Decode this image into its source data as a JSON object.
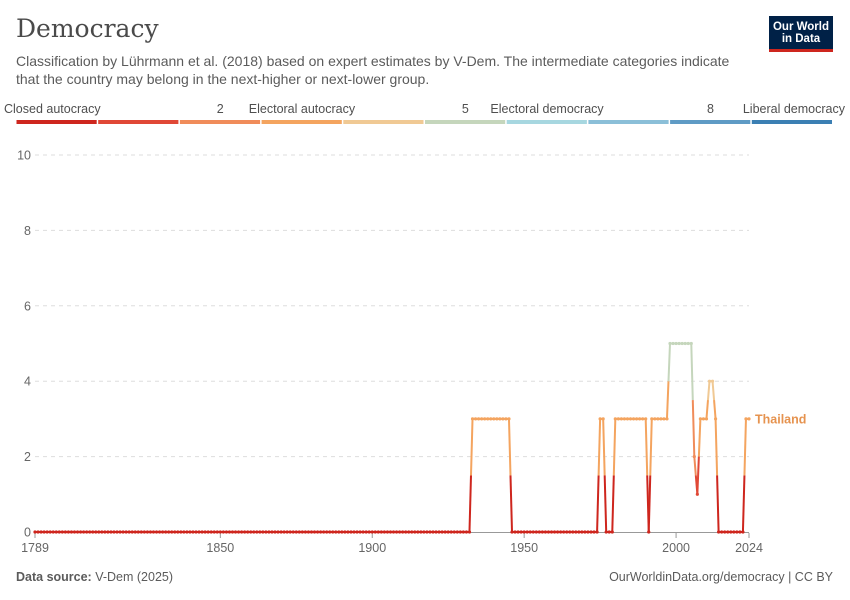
{
  "header": {
    "title": "Democracy",
    "subtitle": "Classification by Lührmann et al. (2018) based on expert estimates by V-Dem. The intermediate categories indicate that the country may belong in the next-higher or next-lower group.",
    "logo_line1": "Our World",
    "logo_line2": "in Data"
  },
  "footer": {
    "source_label": "Data source:",
    "source_value": "V-Dem (2025)",
    "link": "OurWorldinData.org/democracy | CC BY"
  },
  "colors": {
    "scale": [
      "#ce261e",
      "#e04836",
      "#f08c5a",
      "#f4a45f",
      "#f0c994",
      "#c5d6bc",
      "#a7d7e0",
      "#8bbfd8",
      "#5f9bc5",
      "#3b7fb3"
    ]
  },
  "chart_data": {
    "type": "line",
    "title": "Democracy",
    "xlabel": "",
    "ylabel": "",
    "xlim": [
      1789,
      2024
    ],
    "ylim": [
      0,
      10
    ],
    "x_ticks": [
      1789,
      1850,
      1900,
      1950,
      2000,
      2024
    ],
    "y_ticks": [
      0,
      2,
      4,
      6,
      8,
      10
    ],
    "grid": true,
    "legend": {
      "position": "top",
      "labels": [
        {
          "text": "Closed autocracy",
          "index": 0
        },
        {
          "text": "2",
          "index": 2
        },
        {
          "text": "Electoral autocracy",
          "index": 3
        },
        {
          "text": "5",
          "index": 5
        },
        {
          "text": "Electoral democracy",
          "index": 6
        },
        {
          "text": "8",
          "index": 8
        },
        {
          "text": "Liberal democracy",
          "index": 9
        }
      ]
    },
    "series": [
      {
        "name": "Thailand",
        "label_color": "#e6934f",
        "points": [
          [
            1789,
            0
          ],
          [
            1932,
            0
          ],
          [
            1933,
            3
          ],
          [
            1945,
            3
          ],
          [
            1946,
            0
          ],
          [
            1974,
            0
          ],
          [
            1975,
            3
          ],
          [
            1976,
            3
          ],
          [
            1977,
            0
          ],
          [
            1979,
            0
          ],
          [
            1980,
            3
          ],
          [
            1990,
            3
          ],
          [
            1991,
            0
          ],
          [
            1992,
            3
          ],
          [
            1997,
            3
          ],
          [
            1998,
            5
          ],
          [
            2005,
            5
          ],
          [
            2006,
            2
          ],
          [
            2007,
            1
          ],
          [
            2008,
            3
          ],
          [
            2010,
            3
          ],
          [
            2011,
            4
          ],
          [
            2012,
            4
          ],
          [
            2013,
            3
          ],
          [
            2014,
            0
          ],
          [
            2022,
            0
          ],
          [
            2023,
            3
          ],
          [
            2024,
            3
          ]
        ]
      }
    ]
  }
}
